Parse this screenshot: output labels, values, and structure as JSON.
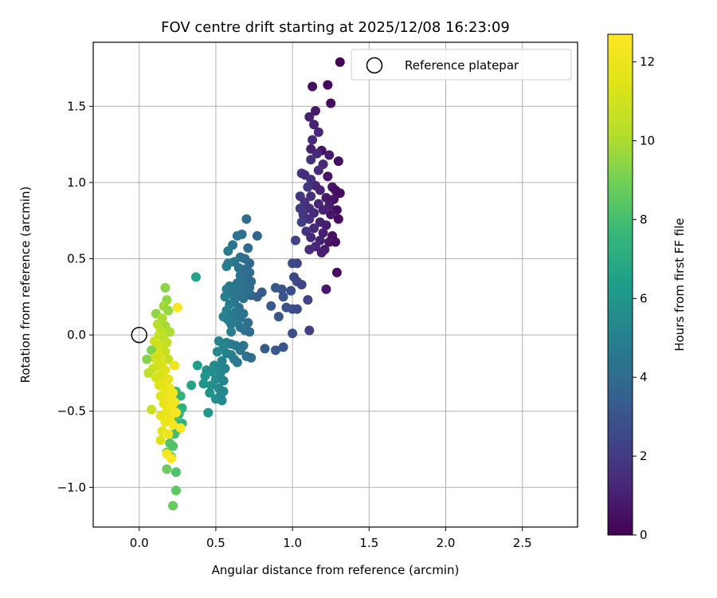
{
  "chart_data": {
    "type": "scatter",
    "title": "FOV centre drift starting at 2025/12/08 16:23:09",
    "xlabel": "Angular distance from reference (arcmin)",
    "ylabel": "Rotation from reference (arcmin)",
    "xlim": [
      -0.3,
      2.86
    ],
    "ylim": [
      -1.26,
      1.92
    ],
    "xticks": [
      0.0,
      0.5,
      1.0,
      1.5,
      2.0,
      2.5
    ],
    "xtick_labels": [
      "0.0",
      "0.5",
      "1.0",
      "1.5",
      "2.0",
      "2.5"
    ],
    "yticks": [
      -1.0,
      -0.5,
      0.0,
      0.5,
      1.0,
      1.5
    ],
    "ytick_labels": [
      "−1.0",
      "−0.5",
      "0.0",
      "0.5",
      "1.0",
      "1.5"
    ],
    "grid": true,
    "legend": {
      "position": "top-right",
      "label": "Reference platepar"
    },
    "reference_point": {
      "x": 0.0,
      "y": 0.0
    },
    "colorbar": {
      "label": "Hours from first FF file",
      "colormap": "viridis",
      "range": [
        0,
        12.7
      ],
      "ticks": [
        0,
        2,
        4,
        6,
        8,
        10,
        12
      ],
      "tick_labels": [
        "0",
        "2",
        "4",
        "6",
        "8",
        "10",
        "12"
      ]
    },
    "points": [
      {
        "x": 1.31,
        "y": 1.79,
        "t": 0.1
      },
      {
        "x": 1.23,
        "y": 1.64,
        "t": 0.3
      },
      {
        "x": 1.13,
        "y": 1.63,
        "t": 0.5
      },
      {
        "x": 1.25,
        "y": 1.52,
        "t": 0.4
      },
      {
        "x": 1.15,
        "y": 1.47,
        "t": 0.8
      },
      {
        "x": 1.11,
        "y": 1.43,
        "t": 1.0
      },
      {
        "x": 1.14,
        "y": 1.38,
        "t": 1.1
      },
      {
        "x": 1.17,
        "y": 1.33,
        "t": 1.2
      },
      {
        "x": 1.13,
        "y": 1.28,
        "t": 1.4
      },
      {
        "x": 1.12,
        "y": 1.22,
        "t": 1.0
      },
      {
        "x": 1.19,
        "y": 1.21,
        "t": 0.6
      },
      {
        "x": 1.16,
        "y": 1.19,
        "t": 1.3
      },
      {
        "x": 1.24,
        "y": 1.18,
        "t": 0.9
      },
      {
        "x": 1.12,
        "y": 1.15,
        "t": 1.6
      },
      {
        "x": 1.2,
        "y": 1.12,
        "t": 1.2
      },
      {
        "x": 1.3,
        "y": 1.14,
        "t": 0.4
      },
      {
        "x": 1.17,
        "y": 1.08,
        "t": 1.5
      },
      {
        "x": 1.06,
        "y": 1.06,
        "t": 1.9
      },
      {
        "x": 1.08,
        "y": 1.05,
        "t": 1.4
      },
      {
        "x": 1.23,
        "y": 1.04,
        "t": 0.7
      },
      {
        "x": 1.12,
        "y": 1.02,
        "t": 1.7
      },
      {
        "x": 1.15,
        "y": 0.98,
        "t": 1.3
      },
      {
        "x": 1.1,
        "y": 0.97,
        "t": 1.8
      },
      {
        "x": 1.26,
        "y": 0.97,
        "t": 0.7
      },
      {
        "x": 1.18,
        "y": 0.95,
        "t": 1.1
      },
      {
        "x": 1.28,
        "y": 0.95,
        "t": 0.5
      },
      {
        "x": 1.31,
        "y": 0.93,
        "t": 0.3
      },
      {
        "x": 1.05,
        "y": 0.91,
        "t": 1.9
      },
      {
        "x": 1.12,
        "y": 0.91,
        "t": 1.6
      },
      {
        "x": 1.22,
        "y": 0.9,
        "t": 0.8
      },
      {
        "x": 1.27,
        "y": 0.89,
        "t": 0.6
      },
      {
        "x": 1.08,
        "y": 0.87,
        "t": 1.7
      },
      {
        "x": 1.17,
        "y": 0.86,
        "t": 1.2
      },
      {
        "x": 1.24,
        "y": 0.85,
        "t": 0.9
      },
      {
        "x": 1.11,
        "y": 0.83,
        "t": 1.5
      },
      {
        "x": 1.05,
        "y": 0.83,
        "t": 2.0
      },
      {
        "x": 1.2,
        "y": 0.82,
        "t": 1.0
      },
      {
        "x": 1.29,
        "y": 0.82,
        "t": 0.5
      },
      {
        "x": 1.14,
        "y": 0.8,
        "t": 1.4
      },
      {
        "x": 1.07,
        "y": 0.79,
        "t": 1.8
      },
      {
        "x": 1.25,
        "y": 0.79,
        "t": 0.7
      },
      {
        "x": 1.3,
        "y": 0.76,
        "t": 0.4
      },
      {
        "x": 1.11,
        "y": 0.76,
        "t": 1.6
      },
      {
        "x": 1.18,
        "y": 0.74,
        "t": 1.1
      },
      {
        "x": 1.06,
        "y": 0.74,
        "t": 2.1
      },
      {
        "x": 1.22,
        "y": 0.72,
        "t": 0.9
      },
      {
        "x": 1.14,
        "y": 0.7,
        "t": 1.3
      },
      {
        "x": 1.09,
        "y": 0.68,
        "t": 1.7
      },
      {
        "x": 1.2,
        "y": 0.67,
        "t": 1.0
      },
      {
        "x": 1.26,
        "y": 0.65,
        "t": 0.6
      },
      {
        "x": 1.12,
        "y": 0.64,
        "t": 1.4
      },
      {
        "x": 1.02,
        "y": 0.62,
        "t": 2.3
      },
      {
        "x": 1.18,
        "y": 0.62,
        "t": 1.1
      },
      {
        "x": 1.24,
        "y": 0.61,
        "t": 0.7
      },
      {
        "x": 1.28,
        "y": 0.61,
        "t": 0.5
      },
      {
        "x": 1.15,
        "y": 0.58,
        "t": 1.2
      },
      {
        "x": 1.11,
        "y": 0.56,
        "t": 1.5
      },
      {
        "x": 1.21,
        "y": 0.56,
        "t": 0.9
      },
      {
        "x": 1.19,
        "y": 0.54,
        "t": 1.0
      },
      {
        "x": 1.29,
        "y": 0.41,
        "t": 0.4
      },
      {
        "x": 1.22,
        "y": 0.3,
        "t": 0.8
      },
      {
        "x": 1.03,
        "y": 0.47,
        "t": 2.4
      },
      {
        "x": 1.0,
        "y": 0.47,
        "t": 2.6
      },
      {
        "x": 1.01,
        "y": 0.38,
        "t": 2.6
      },
      {
        "x": 1.03,
        "y": 0.35,
        "t": 2.5
      },
      {
        "x": 1.06,
        "y": 0.33,
        "t": 2.4
      },
      {
        "x": 0.99,
        "y": 0.29,
        "t": 2.8
      },
      {
        "x": 0.93,
        "y": 0.3,
        "t": 3.0
      },
      {
        "x": 0.89,
        "y": 0.31,
        "t": 3.1
      },
      {
        "x": 0.94,
        "y": 0.25,
        "t": 3.0
      },
      {
        "x": 1.1,
        "y": 0.23,
        "t": 2.3
      },
      {
        "x": 0.86,
        "y": 0.19,
        "t": 3.2
      },
      {
        "x": 1.0,
        "y": 0.17,
        "t": 2.7
      },
      {
        "x": 1.03,
        "y": 0.17,
        "t": 2.6
      },
      {
        "x": 0.96,
        "y": 0.18,
        "t": 2.9
      },
      {
        "x": 0.91,
        "y": 0.12,
        "t": 3.1
      },
      {
        "x": 0.8,
        "y": 0.28,
        "t": 3.3
      },
      {
        "x": 0.77,
        "y": 0.25,
        "t": 3.4
      },
      {
        "x": 0.73,
        "y": 0.26,
        "t": 3.6
      },
      {
        "x": 1.11,
        "y": 0.03,
        "t": 2.2
      },
      {
        "x": 1.0,
        "y": 0.01,
        "t": 2.7
      },
      {
        "x": 0.94,
        "y": -0.08,
        "t": 3.0
      },
      {
        "x": 0.89,
        "y": -0.1,
        "t": 3.1
      },
      {
        "x": 0.82,
        "y": -0.09,
        "t": 3.3
      },
      {
        "x": 0.7,
        "y": 0.76,
        "t": 4.0
      },
      {
        "x": 0.64,
        "y": 0.65,
        "t": 4.3
      },
      {
        "x": 0.67,
        "y": 0.66,
        "t": 4.2
      },
      {
        "x": 0.61,
        "y": 0.59,
        "t": 4.5
      },
      {
        "x": 0.77,
        "y": 0.65,
        "t": 3.7
      },
      {
        "x": 0.71,
        "y": 0.57,
        "t": 4.0
      },
      {
        "x": 0.58,
        "y": 0.55,
        "t": 4.8
      },
      {
        "x": 0.66,
        "y": 0.51,
        "t": 4.3
      },
      {
        "x": 0.69,
        "y": 0.5,
        "t": 4.1
      },
      {
        "x": 0.62,
        "y": 0.48,
        "t": 4.5
      },
      {
        "x": 0.58,
        "y": 0.47,
        "t": 4.8
      },
      {
        "x": 0.57,
        "y": 0.45,
        "t": 4.9
      },
      {
        "x": 0.72,
        "y": 0.47,
        "t": 3.9
      },
      {
        "x": 0.65,
        "y": 0.44,
        "t": 4.4
      },
      {
        "x": 0.69,
        "y": 0.43,
        "t": 4.2
      },
      {
        "x": 0.72,
        "y": 0.41,
        "t": 4.0
      },
      {
        "x": 0.66,
        "y": 0.39,
        "t": 4.3
      },
      {
        "x": 0.7,
        "y": 0.38,
        "t": 4.1
      },
      {
        "x": 0.73,
        "y": 0.35,
        "t": 3.9
      },
      {
        "x": 0.64,
        "y": 0.34,
        "t": 4.4
      },
      {
        "x": 0.68,
        "y": 0.33,
        "t": 4.2
      },
      {
        "x": 0.59,
        "y": 0.32,
        "t": 4.7
      },
      {
        "x": 0.63,
        "y": 0.32,
        "t": 4.5
      },
      {
        "x": 0.72,
        "y": 0.31,
        "t": 4.0
      },
      {
        "x": 0.57,
        "y": 0.3,
        "t": 4.9
      },
      {
        "x": 0.66,
        "y": 0.29,
        "t": 4.3
      },
      {
        "x": 0.7,
        "y": 0.28,
        "t": 4.1
      },
      {
        "x": 0.6,
        "y": 0.27,
        "t": 4.7
      },
      {
        "x": 0.64,
        "y": 0.26,
        "t": 4.5
      },
      {
        "x": 0.56,
        "y": 0.25,
        "t": 5.0
      },
      {
        "x": 0.68,
        "y": 0.24,
        "t": 4.2
      },
      {
        "x": 0.62,
        "y": 0.22,
        "t": 4.6
      },
      {
        "x": 0.59,
        "y": 0.2,
        "t": 4.8
      },
      {
        "x": 0.65,
        "y": 0.18,
        "t": 4.4
      },
      {
        "x": 0.57,
        "y": 0.16,
        "t": 5.0
      },
      {
        "x": 0.63,
        "y": 0.15,
        "t": 4.6
      },
      {
        "x": 0.68,
        "y": 0.14,
        "t": 4.3
      },
      {
        "x": 0.6,
        "y": 0.13,
        "t": 4.8
      },
      {
        "x": 0.55,
        "y": 0.12,
        "t": 5.1
      },
      {
        "x": 0.66,
        "y": 0.11,
        "t": 4.4
      },
      {
        "x": 0.58,
        "y": 0.1,
        "t": 4.9
      },
      {
        "x": 0.63,
        "y": 0.09,
        "t": 4.6
      },
      {
        "x": 0.6,
        "y": 0.07,
        "t": 4.8
      },
      {
        "x": 0.71,
        "y": 0.08,
        "t": 4.1
      },
      {
        "x": 0.66,
        "y": 0.05,
        "t": 4.5
      },
      {
        "x": 0.69,
        "y": 0.03,
        "t": 4.3
      },
      {
        "x": 0.6,
        "y": 0.02,
        "t": 4.9
      },
      {
        "x": 0.72,
        "y": 0.02,
        "t": 4.0
      },
      {
        "x": 0.52,
        "y": -0.04,
        "t": 5.3
      },
      {
        "x": 0.57,
        "y": -0.05,
        "t": 5.1
      },
      {
        "x": 0.6,
        "y": -0.06,
        "t": 4.9
      },
      {
        "x": 0.63,
        "y": -0.07,
        "t": 4.7
      },
      {
        "x": 0.68,
        "y": -0.07,
        "t": 4.4
      },
      {
        "x": 0.55,
        "y": -0.08,
        "t": 5.2
      },
      {
        "x": 0.66,
        "y": -0.1,
        "t": 4.5
      },
      {
        "x": 0.51,
        "y": -0.11,
        "t": 5.4
      },
      {
        "x": 0.57,
        "y": -0.12,
        "t": 5.1
      },
      {
        "x": 0.6,
        "y": -0.13,
        "t": 5.0
      },
      {
        "x": 0.7,
        "y": -0.14,
        "t": 4.3
      },
      {
        "x": 0.73,
        "y": -0.15,
        "t": 4.1
      },
      {
        "x": 0.62,
        "y": -0.16,
        "t": 4.8
      },
      {
        "x": 0.54,
        "y": -0.17,
        "t": 5.2
      },
      {
        "x": 0.64,
        "y": -0.18,
        "t": 4.7
      },
      {
        "x": 0.49,
        "y": -0.2,
        "t": 5.5
      },
      {
        "x": 0.52,
        "y": -0.21,
        "t": 5.3
      },
      {
        "x": 0.56,
        "y": -0.22,
        "t": 5.2
      },
      {
        "x": 0.44,
        "y": -0.23,
        "t": 5.8
      },
      {
        "x": 0.47,
        "y": -0.24,
        "t": 5.6
      },
      {
        "x": 0.53,
        "y": -0.25,
        "t": 5.3
      },
      {
        "x": 0.43,
        "y": -0.27,
        "t": 5.9
      },
      {
        "x": 0.5,
        "y": -0.29,
        "t": 5.4
      },
      {
        "x": 0.55,
        "y": -0.3,
        "t": 5.2
      },
      {
        "x": 0.42,
        "y": -0.32,
        "t": 6.0
      },
      {
        "x": 0.47,
        "y": -0.33,
        "t": 5.7
      },
      {
        "x": 0.52,
        "y": -0.35,
        "t": 5.4
      },
      {
        "x": 0.55,
        "y": -0.37,
        "t": 5.3
      },
      {
        "x": 0.46,
        "y": -0.38,
        "t": 5.8
      },
      {
        "x": 0.53,
        "y": -0.4,
        "t": 5.4
      },
      {
        "x": 0.5,
        "y": -0.42,
        "t": 5.6
      },
      {
        "x": 0.54,
        "y": -0.43,
        "t": 5.4
      },
      {
        "x": 0.37,
        "y": 0.38,
        "t": 6.6
      },
      {
        "x": 0.38,
        "y": -0.2,
        "t": 6.4
      },
      {
        "x": 0.34,
        "y": -0.33,
        "t": 6.7
      },
      {
        "x": 0.45,
        "y": -0.51,
        "t": 6.0
      },
      {
        "x": 0.24,
        "y": -0.37,
        "t": 7.6
      },
      {
        "x": 0.27,
        "y": -0.4,
        "t": 7.4
      },
      {
        "x": 0.23,
        "y": -0.45,
        "t": 7.8
      },
      {
        "x": 0.28,
        "y": -0.48,
        "t": 7.3
      },
      {
        "x": 0.26,
        "y": -0.52,
        "t": 7.5
      },
      {
        "x": 0.23,
        "y": -0.56,
        "t": 7.9
      },
      {
        "x": 0.28,
        "y": -0.58,
        "t": 7.4
      },
      {
        "x": 0.25,
        "y": -0.62,
        "t": 7.7
      },
      {
        "x": 0.23,
        "y": -0.65,
        "t": 8.0
      },
      {
        "x": 0.2,
        "y": -0.71,
        "t": 8.3
      },
      {
        "x": 0.22,
        "y": -0.73,
        "t": 8.2
      },
      {
        "x": 0.18,
        "y": -0.77,
        "t": 8.6
      },
      {
        "x": 0.21,
        "y": -0.8,
        "t": 8.4
      },
      {
        "x": 0.18,
        "y": -0.88,
        "t": 8.8
      },
      {
        "x": 0.24,
        "y": -0.9,
        "t": 8.2
      },
      {
        "x": 0.24,
        "y": -1.02,
        "t": 8.5
      },
      {
        "x": 0.22,
        "y": -1.12,
        "t": 8.7
      },
      {
        "x": 0.17,
        "y": 0.31,
        "t": 9.4
      },
      {
        "x": 0.18,
        "y": 0.23,
        "t": 9.5
      },
      {
        "x": 0.16,
        "y": 0.19,
        "t": 9.8
      },
      {
        "x": 0.19,
        "y": 0.16,
        "t": 9.6
      },
      {
        "x": 0.11,
        "y": 0.14,
        "t": 9.5
      },
      {
        "x": 0.15,
        "y": 0.11,
        "t": 10.0
      },
      {
        "x": 0.12,
        "y": 0.07,
        "t": 10.2
      },
      {
        "x": 0.17,
        "y": 0.06,
        "t": 9.9
      },
      {
        "x": 0.14,
        "y": 0.03,
        "t": 10.4
      },
      {
        "x": 0.2,
        "y": 0.02,
        "t": 10.0
      },
      {
        "x": 0.13,
        "y": 0.0,
        "t": 10.6
      },
      {
        "x": 0.16,
        "y": -0.02,
        "t": 10.3
      },
      {
        "x": 0.1,
        "y": -0.04,
        "t": 10.9
      },
      {
        "x": 0.18,
        "y": -0.05,
        "t": 10.5
      },
      {
        "x": 0.14,
        "y": -0.07,
        "t": 10.8
      },
      {
        "x": 0.12,
        "y": -0.08,
        "t": 11.0
      },
      {
        "x": 0.08,
        "y": -0.1,
        "t": 9.2
      },
      {
        "x": 0.17,
        "y": -0.11,
        "t": 10.7
      },
      {
        "x": 0.13,
        "y": -0.13,
        "t": 11.2
      },
      {
        "x": 0.1,
        "y": -0.15,
        "t": 11.0
      },
      {
        "x": 0.05,
        "y": -0.16,
        "t": 9.3
      },
      {
        "x": 0.19,
        "y": -0.16,
        "t": 10.6
      },
      {
        "x": 0.15,
        "y": -0.18,
        "t": 11.3
      },
      {
        "x": 0.12,
        "y": -0.2,
        "t": 11.1
      },
      {
        "x": 0.09,
        "y": -0.22,
        "t": 10.9
      },
      {
        "x": 0.17,
        "y": -0.23,
        "t": 11.5
      },
      {
        "x": 0.06,
        "y": -0.25,
        "t": 10.4
      },
      {
        "x": 0.14,
        "y": -0.26,
        "t": 11.4
      },
      {
        "x": 0.11,
        "y": -0.28,
        "t": 11.2
      },
      {
        "x": 0.19,
        "y": -0.29,
        "t": 11.7
      },
      {
        "x": 0.16,
        "y": -0.31,
        "t": 11.8
      },
      {
        "x": 0.13,
        "y": -0.33,
        "t": 11.5
      },
      {
        "x": 0.2,
        "y": -0.35,
        "t": 12.0
      },
      {
        "x": 0.17,
        "y": -0.37,
        "t": 11.9
      },
      {
        "x": 0.22,
        "y": -0.38,
        "t": 12.2
      },
      {
        "x": 0.14,
        "y": -0.4,
        "t": 11.6
      },
      {
        "x": 0.19,
        "y": -0.42,
        "t": 12.1
      },
      {
        "x": 0.23,
        "y": -0.44,
        "t": 12.3
      },
      {
        "x": 0.16,
        "y": -0.45,
        "t": 11.8
      },
      {
        "x": 0.21,
        "y": -0.47,
        "t": 12.4
      },
      {
        "x": 0.08,
        "y": -0.49,
        "t": 10.8
      },
      {
        "x": 0.18,
        "y": -0.5,
        "t": 12.0
      },
      {
        "x": 0.24,
        "y": -0.51,
        "t": 12.5
      },
      {
        "x": 0.14,
        "y": -0.53,
        "t": 11.7
      },
      {
        "x": 0.2,
        "y": -0.55,
        "t": 12.2
      },
      {
        "x": 0.17,
        "y": -0.57,
        "t": 12.0
      },
      {
        "x": 0.22,
        "y": -0.59,
        "t": 12.4
      },
      {
        "x": 0.27,
        "y": -0.61,
        "t": 12.6
      },
      {
        "x": 0.15,
        "y": -0.63,
        "t": 11.6
      },
      {
        "x": 0.19,
        "y": -0.65,
        "t": 12.1
      },
      {
        "x": 0.14,
        "y": -0.69,
        "t": 11.4
      },
      {
        "x": 0.18,
        "y": -0.78,
        "t": 12.3
      },
      {
        "x": 0.21,
        "y": -0.81,
        "t": 12.6
      },
      {
        "x": 0.25,
        "y": 0.18,
        "t": 12.5
      },
      {
        "x": 0.23,
        "y": -0.2,
        "t": 12.2
      }
    ]
  }
}
